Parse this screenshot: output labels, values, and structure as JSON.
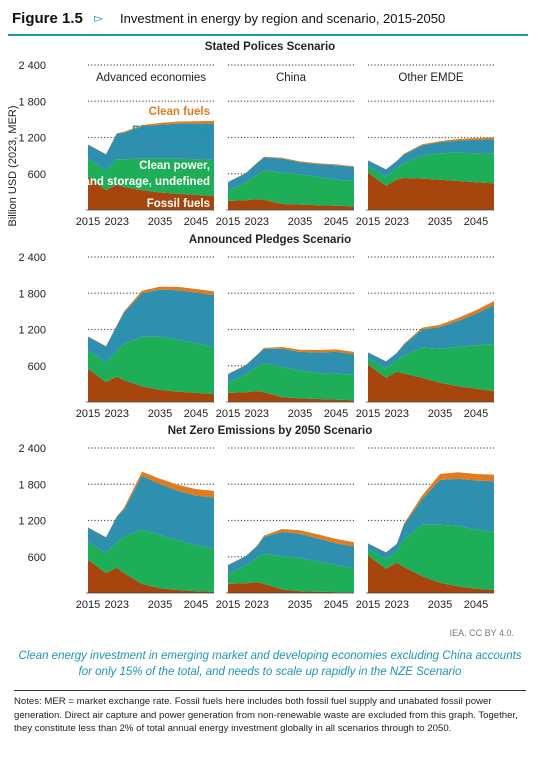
{
  "figure": {
    "number": "Figure 1.5",
    "arrow": "▻",
    "title": "Investment in energy by region and scenario, 2015-2050"
  },
  "caption": "Clean energy investment in emerging market and developing economies excluding China accounts for only 15% of the total, and needs to scale up rapidly in the NZE Scenario",
  "notes": "Notes: MER = market exchange rate. Fossil fuels here includes both fossil fuel supply and unabated fossil power generation. Direct air capture and power generation from non-renewable waste are excluded from this graph. Together, they constitute less than 2% of total annual energy investment globally in all scenarios through to 2050.",
  "source": "IEA. CC BY 4.0.",
  "colors": {
    "fossil": "#a8440d",
    "clean_power": "#1fae58",
    "efficiency": "#2f8fae",
    "clean_fuels": "#e07b20",
    "legend_clean_fuels": "#e07b20",
    "legend_efficiency": "#1c95b2",
    "legend_other": "#ffffff",
    "axis_grid": "#555555"
  },
  "chart_data": {
    "type": "area",
    "stacked": true,
    "ylabel": "Billion USD (2023, MER)",
    "ylim": [
      0,
      2400
    ],
    "yticks": [
      600,
      1200,
      1800,
      2400
    ],
    "xticks": [
      2015,
      2023,
      2035,
      2045
    ],
    "grid": "dotted horizontal",
    "legend_labels": [
      "Clean fuels",
      "Efficiency and end-use",
      "Clean power, grids and storage",
      "Fossil fuels"
    ],
    "series_names": [
      "Fossil fuels",
      "Clean power, grids and storage",
      "Efficiency and end-use",
      "Clean fuels"
    ],
    "regions": [
      "Advanced economies",
      "China",
      "Other EMDE"
    ],
    "x": [
      2015,
      2020,
      2023,
      2025,
      2030,
      2035,
      2040,
      2045,
      2050
    ],
    "scenarios": [
      {
        "name": "Stated Polices Scenario",
        "panels": [
          {
            "region": "Advanced economies",
            "series": [
              [
                550,
                330,
                420,
                380,
                330,
                290,
                270,
                250,
                230
              ],
              [
                300,
                330,
                420,
                460,
                520,
                560,
                580,
                590,
                600
              ],
              [
                230,
                260,
                420,
                440,
                530,
                560,
                580,
                590,
                600
              ],
              [
                5,
                5,
                10,
                15,
                25,
                30,
                35,
                40,
                45
              ]
            ]
          },
          {
            "region": "China",
            "series": [
              [
                150,
                160,
                180,
                170,
                100,
                90,
                80,
                70,
                60
              ],
              [
                170,
                300,
                400,
                480,
                520,
                500,
                470,
                430,
                420
              ],
              [
                140,
                150,
                190,
                220,
                230,
                200,
                210,
                240,
                230
              ],
              [
                5,
                5,
                10,
                10,
                15,
                15,
                15,
                15,
                15
              ]
            ]
          },
          {
            "region": "Other EMDE",
            "series": [
              [
                620,
                400,
                500,
                530,
                520,
                500,
                480,
                460,
                440
              ],
              [
                110,
                160,
                190,
                250,
                380,
                440,
                470,
                480,
                490
              ],
              [
                90,
                110,
                120,
                140,
                170,
                180,
                200,
                220,
                240
              ],
              [
                5,
                5,
                5,
                10,
                15,
                20,
                25,
                30,
                35
              ]
            ]
          }
        ]
      },
      {
        "name": "Announced Pledges Scenario",
        "panels": [
          {
            "region": "Advanced economies",
            "series": [
              [
                550,
                330,
                420,
                360,
                260,
                200,
                170,
                150,
                130
              ],
              [
                300,
                330,
                420,
                600,
                820,
                880,
                860,
                820,
                780
              ],
              [
                230,
                260,
                420,
                520,
                720,
                780,
                820,
                840,
                860
              ],
              [
                5,
                5,
                10,
                20,
                40,
                50,
                55,
                60,
                60
              ]
            ]
          },
          {
            "region": "China",
            "series": [
              [
                150,
                160,
                180,
                160,
                80,
                60,
                50,
                40,
                30
              ],
              [
                170,
                300,
                400,
                480,
                500,
                460,
                430,
                430,
                420
              ],
              [
                140,
                150,
                190,
                240,
                300,
                310,
                340,
                360,
                340
              ],
              [
                5,
                5,
                10,
                15,
                30,
                35,
                40,
                40,
                40
              ]
            ]
          },
          {
            "region": "Other EMDE",
            "series": [
              [
                620,
                400,
                500,
                470,
                400,
                320,
                260,
                220,
                180
              ],
              [
                110,
                160,
                190,
                300,
                500,
                560,
                650,
                720,
                780
              ],
              [
                90,
                110,
                120,
                180,
                300,
                360,
                430,
                520,
                640
              ],
              [
                5,
                5,
                5,
                15,
                30,
                40,
                50,
                60,
                70
              ]
            ]
          }
        ]
      },
      {
        "name": "Net Zero Emissions by 2050 Scenario",
        "panels": [
          {
            "region": "Advanced economies",
            "series": [
              [
                550,
                330,
                420,
                330,
                150,
                80,
                50,
                30,
                20
              ],
              [
                300,
                330,
                420,
                600,
                900,
                880,
                820,
                760,
                720
              ],
              [
                230,
                260,
                420,
                450,
                890,
                840,
                820,
                820,
                840
              ],
              [
                5,
                5,
                10,
                30,
                70,
                90,
                100,
                110,
                110
              ]
            ]
          },
          {
            "region": "China",
            "series": [
              [
                150,
                160,
                180,
                150,
                60,
                30,
                20,
                15,
                10
              ],
              [
                170,
                300,
                400,
                500,
                550,
                550,
                500,
                450,
                400
              ],
              [
                140,
                150,
                190,
                280,
                400,
                400,
                380,
                360,
                360
              ],
              [
                5,
                5,
                10,
                20,
                50,
                60,
                70,
                70,
                70
              ]
            ]
          },
          {
            "region": "Other EMDE",
            "series": [
              [
                620,
                400,
                500,
                430,
                280,
                170,
                110,
                70,
                50
              ],
              [
                110,
                160,
                190,
                450,
                850,
                960,
                1000,
                980,
                960
              ],
              [
                90,
                110,
                120,
                250,
                420,
                740,
                780,
                810,
                840
              ],
              [
                5,
                5,
                5,
                20,
                60,
                100,
                110,
                110,
                110
              ]
            ]
          }
        ]
      }
    ]
  }
}
